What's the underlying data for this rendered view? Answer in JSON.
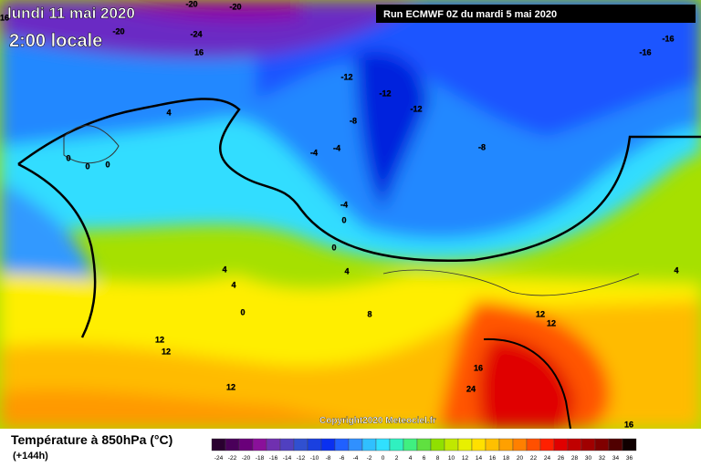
{
  "header": {
    "date": "lundi 11 mai 2020",
    "time": "2:00 locale",
    "run": "Run ECMWF 0Z du mardi 5 mai 2020"
  },
  "map": {
    "contour_labels": [
      -20,
      -20,
      -24,
      -20,
      16,
      16,
      -16,
      -16,
      -12,
      -12,
      -12,
      -8,
      -8,
      -4,
      -4,
      -4,
      4,
      0,
      0,
      0,
      0,
      0,
      4,
      4,
      4,
      0,
      4,
      8,
      12,
      12,
      12,
      12,
      12,
      16,
      24,
      16
    ]
  },
  "footer": {
    "copyright": "Copyright2020 Meteociel.fr",
    "title": "Température à 850hPa (°C)",
    "lead": "(+144h)",
    "scale": [
      -24,
      -22,
      -20,
      -18,
      -16,
      -14,
      -12,
      -10,
      -8,
      -6,
      -4,
      -2,
      0,
      2,
      4,
      6,
      8,
      10,
      12,
      14,
      16,
      18,
      20,
      22,
      24,
      26,
      28,
      30,
      32,
      34,
      36
    ]
  }
}
